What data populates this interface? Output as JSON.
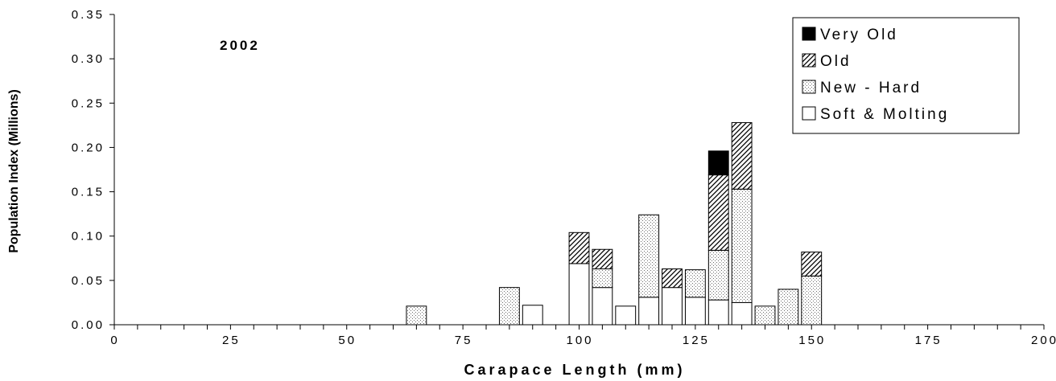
{
  "chart_data": {
    "type": "bar",
    "stacked": true,
    "annotation": "2002",
    "xlabel": "Carapace Length (mm)",
    "ylabel": "Population Index (Millions)",
    "xlim": [
      0,
      200
    ],
    "ylim": [
      0,
      0.35
    ],
    "xticks": [
      "0",
      "25",
      "50",
      "75",
      "100",
      "125",
      "150",
      "175",
      "200"
    ],
    "yticks": [
      "0.00",
      "0.05",
      "0.10",
      "0.15",
      "0.20",
      "0.25",
      "0.30",
      "0.35"
    ],
    "bin_width": 5,
    "legend_position": "top-right",
    "x": [
      65,
      85,
      90,
      100,
      105,
      110,
      115,
      120,
      125,
      130,
      135,
      140,
      145,
      150
    ],
    "series": [
      {
        "name": "Soft & Molting",
        "pattern": "white",
        "values": [
          0,
          0,
          0.022,
          0.069,
          0.042,
          0.021,
          0.031,
          0.042,
          0.031,
          0.028,
          0.025,
          0,
          0,
          0
        ]
      },
      {
        "name": "New - Hard",
        "pattern": "dotted",
        "values": [
          0.021,
          0.042,
          0,
          0,
          0.021,
          0,
          0.093,
          0,
          0.031,
          0.056,
          0.128,
          0.021,
          0.04,
          0.055
        ]
      },
      {
        "name": "Old",
        "pattern": "hatched",
        "values": [
          0,
          0,
          0,
          0.035,
          0.022,
          0,
          0,
          0.021,
          0,
          0.085,
          0.075,
          0,
          0,
          0.027
        ]
      },
      {
        "name": "Very Old",
        "pattern": "black",
        "values": [
          0,
          0,
          0,
          0,
          0,
          0,
          0,
          0,
          0,
          0.027,
          0,
          0,
          0,
          0
        ]
      }
    ],
    "legend_order": [
      "Very Old",
      "Old",
      "New - Hard",
      "Soft & Molting"
    ]
  }
}
